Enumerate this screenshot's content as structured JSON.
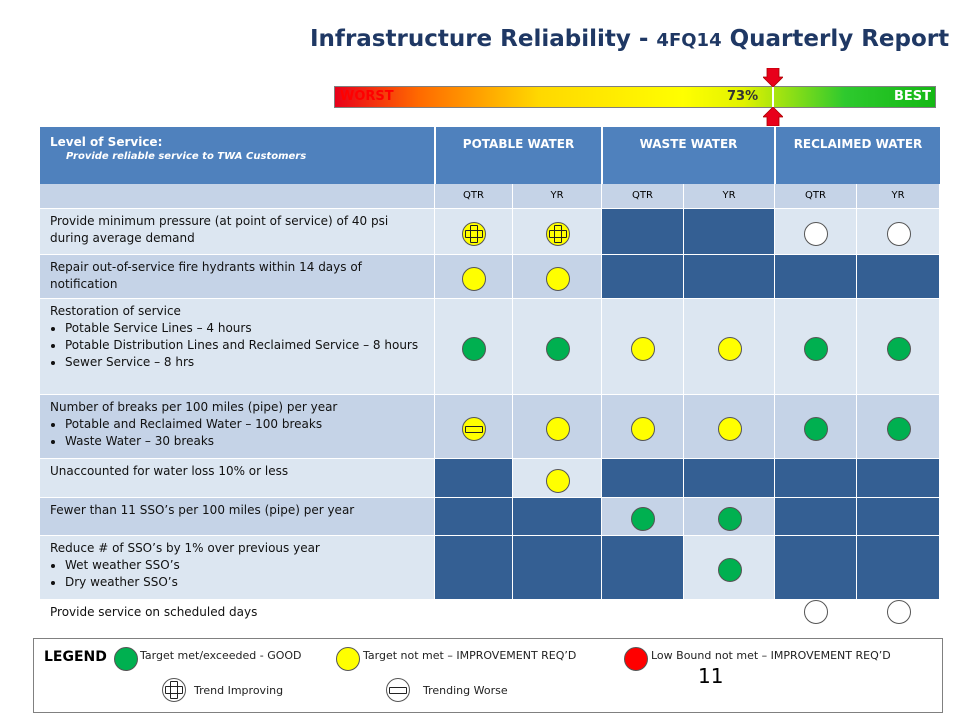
{
  "header": {
    "title_main": "Infrastructure Reliability - ",
    "title_quarter": "4FQ14",
    "title_tail": " Quarterly Report"
  },
  "scale": {
    "worst_label": "WORST",
    "best_label": "BEST",
    "percent_label": "73%",
    "value": 0.73
  },
  "table": {
    "level_label": "Level of Service:",
    "level_sub": "Provide reliable service to TWA Customers",
    "columns": [
      "POTABLE WATER",
      "WASTE WATER",
      "RECLAIMED WATER"
    ],
    "sub_columns": [
      "QTR",
      "YR",
      "QTR",
      "YR",
      "QTR",
      "YR"
    ],
    "rows": [
      {
        "label": "Provide minimum pressure (at point of service) of 40 psi during average demand",
        "bullets": [],
        "cells": [
          "y+",
          "y+",
          "n",
          "n",
          "w",
          "w"
        ]
      },
      {
        "label": "Repair out-of-service fire hydrants within 14 days of notification",
        "bullets": [],
        "cells": [
          "y",
          "y",
          "n",
          "n",
          "n",
          "n"
        ]
      },
      {
        "label": "Restoration of service",
        "bullets": [
          "Potable Service Lines – 4 hours",
          "Potable Distribution Lines and Reclaimed Service – 8 hours",
          "Sewer Service – 8 hrs"
        ],
        "cells": [
          "g",
          "g",
          "y",
          "y",
          "g",
          "g"
        ]
      },
      {
        "label": "Number of breaks per 100 miles (pipe) per year",
        "bullets": [
          "Potable and Reclaimed Water – 100 breaks",
          "Waste Water – 30 breaks"
        ],
        "cells": [
          "y-",
          "y",
          "y",
          "y",
          "g",
          "g"
        ]
      },
      {
        "label": "Unaccounted for water loss 10% or less",
        "bullets": [],
        "cells": [
          "n",
          "y",
          "n",
          "n",
          "n",
          "n"
        ]
      },
      {
        "label": "Fewer than 11 SSO’s per 100 miles (pipe) per year",
        "bullets": [],
        "cells": [
          "n",
          "n",
          "g",
          "g",
          "n",
          "n"
        ]
      },
      {
        "label": "Reduce # of SSO’s by 1% over previous year",
        "bullets": [
          "Wet weather SSO’s",
          "Dry weather SSO’s"
        ],
        "cells": [
          "n",
          "n",
          "n",
          "g",
          "n",
          "n"
        ]
      },
      {
        "label": "Provide service on scheduled days",
        "bullets": [],
        "cells": [
          "n",
          "n",
          "n",
          "n",
          "w",
          "w"
        ]
      }
    ]
  },
  "legend": {
    "title": "LEGEND",
    "good": "Target met/exceeded - GOOD",
    "not_met": "Target not met – IMPROVEMENT REQ’D",
    "low_bound": "Low Bound not met – IMPROVEMENT REQ’D",
    "improving": "Trend Improving",
    "worse": "Trending Worse"
  },
  "page_number": "11",
  "colors": {
    "header_blue": "#4f81bd",
    "na_blue": "#345f93",
    "row_light": "#dce6f1",
    "row_mid": "#c5d3e7",
    "good_green": "#00b050",
    "warn_yellow": "#ffff00",
    "bad_red": "#ff0000"
  }
}
